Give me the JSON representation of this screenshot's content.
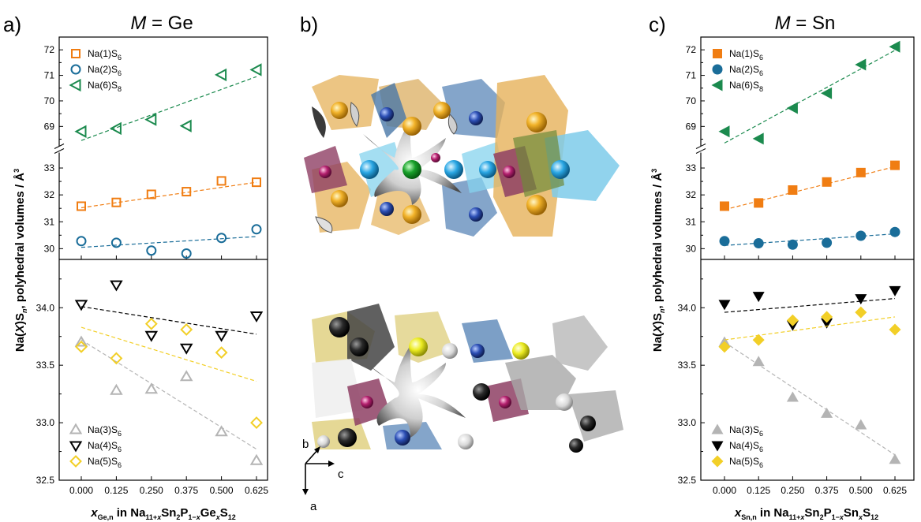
{
  "panels": {
    "a": {
      "letter": "a)",
      "title_italic": "M",
      "title_rest": " = Ge",
      "xlabel": {
        "x": "x",
        "sub": "Ge,n",
        "in": " in Na",
        "s1": "11+",
        "x2": "x",
        "sn": "Sn",
        "s2": "2",
        "p": "P",
        "s3": "1−",
        "x3": "x",
        "el": "Ge",
        "x4": "x",
        "s": "S",
        "s4": "12"
      }
    },
    "b": {
      "letter": "b)",
      "axes": {
        "b": "b",
        "c": "c",
        "a": "a"
      }
    },
    "c": {
      "letter": "c)",
      "title_italic": "M",
      "title_rest": " = Sn",
      "xlabel": {
        "x": "x",
        "sub": "Sn,n",
        "in": " in Na",
        "s1": "11+",
        "x2": "x",
        "sn": "Sn",
        "s2": "2",
        "p": "P",
        "s3": "1−",
        "x3": "x",
        "el": "Sn",
        "x4": "x",
        "s": "S",
        "s4": "12"
      }
    }
  },
  "ylabel": {
    "a": "Na(",
    "b": "X",
    "c2": ")S",
    "d": "n",
    "e": ", polyhedral volumes / Å",
    "f": "3"
  },
  "x_ticks": [
    "0.000",
    "0.125",
    "0.250",
    "0.375",
    "0.500",
    "0.625"
  ],
  "y_ticks": {
    "upper_top": [
      "69",
      "70",
      "71",
      "72"
    ],
    "upper_bottom": [
      "30",
      "31",
      "32",
      "33"
    ],
    "lower": [
      "32.5",
      "33.0",
      "33.5",
      "34.0"
    ]
  },
  "colors": {
    "orange": "#f07d12",
    "blue": "#1a6d99",
    "green": "#1b8a4e",
    "gray": "#b4b4b4",
    "black": "#000000",
    "yellow": "#f2cf27"
  },
  "chart_data": [
    {
      "type": "scatter",
      "panel": "a",
      "title": "M = Ge",
      "xlabel": "x_Ge,n in Na11+xSn2P1−xGexS12",
      "ylabel": "Na(X)Sn, polyhedral volumes / Å3",
      "x": [
        0.0,
        0.125,
        0.25,
        0.375,
        0.5,
        0.625
      ],
      "upper": {
        "ylim_top": [
          68.3,
          72.5
        ],
        "ylim_bottom": [
          29.6,
          33.5
        ],
        "series": [
          {
            "name": "Na(1)S6",
            "base": "Na(1)S",
            "sub": "6",
            "color": "orange",
            "marker": "square-open",
            "break": "bottom",
            "values": [
              31.58,
              31.72,
              32.02,
              32.12,
              32.52,
              32.47
            ],
            "fit": [
              31.52,
              32.47
            ]
          },
          {
            "name": "Na(2)S6",
            "base": "Na(2)S",
            "sub": "6",
            "color": "blue",
            "marker": "circle-open",
            "break": "bottom",
            "values": [
              30.28,
              30.22,
              29.93,
              29.82,
              30.4,
              30.72
            ],
            "fit": [
              30.05,
              30.45
            ]
          },
          {
            "name": "Na(6)S8",
            "base": "Na(6)S",
            "sub": "8",
            "color": "green",
            "marker": "triangle-left-open",
            "break": "top",
            "values": [
              68.8,
              68.92,
              69.27,
              69.02,
              71.02,
              71.22
            ],
            "fit": [
              68.45,
              70.95
            ]
          }
        ]
      },
      "lower": {
        "ylim": [
          32.5,
          34.42
        ],
        "series": [
          {
            "name": "Na(3)S6",
            "base": "Na(3)S",
            "sub": "6",
            "color": "gray",
            "marker": "triangle-up-open",
            "values": [
              33.7,
              33.28,
              33.29,
              33.4,
              32.92,
              32.67
            ],
            "fit": [
              33.72,
              32.77
            ]
          },
          {
            "name": "Na(4)S6",
            "base": "Na(4)S",
            "sub": "6",
            "color": "black",
            "marker": "triangle-down-open",
            "values": [
              34.03,
              34.2,
              33.76,
              33.65,
              33.76,
              33.93
            ],
            "fit": [
              34.01,
              33.77
            ]
          },
          {
            "name": "Na(5)S6",
            "base": "Na(5)S",
            "sub": "6",
            "color": "yellow",
            "marker": "diamond-open",
            "values": [
              33.66,
              33.56,
              33.86,
              33.81,
              33.61,
              33.0
            ],
            "fit": [
              33.83,
              33.36
            ]
          }
        ]
      }
    },
    {
      "type": "scatter",
      "panel": "c",
      "title": "M = Sn",
      "xlabel": "x_Sn,n in Na11+xSn2P1−xSnxS12",
      "ylabel": "",
      "x": [
        0.0,
        0.125,
        0.25,
        0.375,
        0.5,
        0.625
      ],
      "upper": {
        "ylim_top": [
          68.3,
          72.5
        ],
        "ylim_bottom": [
          29.6,
          33.5
        ],
        "series": [
          {
            "name": "Na(1)S6",
            "base": "Na(1)S",
            "sub": "6",
            "color": "orange",
            "marker": "square-filled",
            "break": "bottom",
            "values": [
              31.58,
              31.7,
              32.18,
              32.48,
              32.83,
              33.1
            ],
            "fit": [
              31.45,
              33.05
            ]
          },
          {
            "name": "Na(2)S6",
            "base": "Na(2)S",
            "sub": "6",
            "color": "blue",
            "marker": "circle-filled",
            "break": "bottom",
            "values": [
              30.28,
              30.2,
              30.15,
              30.22,
              30.48,
              30.62
            ],
            "fit": [
              30.12,
              30.55
            ]
          },
          {
            "name": "Na(6)S8",
            "base": "Na(6)S",
            "sub": "8",
            "color": "green",
            "marker": "triangle-left-filled",
            "break": "top",
            "values": [
              68.8,
              68.52,
              69.72,
              70.3,
              71.42,
              72.12
            ],
            "fit": [
              68.35,
              71.98
            ]
          }
        ]
      },
      "lower": {
        "ylim": [
          32.5,
          34.42
        ],
        "series": [
          {
            "name": "Na(3)S6",
            "base": "Na(3)S",
            "sub": "6",
            "color": "gray",
            "marker": "triangle-up-filled",
            "values": [
              33.7,
              33.53,
              33.22,
              33.08,
              32.98,
              32.68
            ],
            "fit": [
              33.7,
              32.72
            ]
          },
          {
            "name": "Na(4)S6",
            "base": "Na(4)S",
            "sub": "6",
            "color": "black",
            "marker": "triangle-down-filled",
            "values": [
              34.03,
              34.1,
              33.85,
              33.87,
              34.08,
              34.15
            ],
            "fit": [
              33.96,
              34.08
            ]
          },
          {
            "name": "Na(5)S6",
            "base": "Na(5)S",
            "sub": "6",
            "color": "yellow",
            "marker": "diamond-filled",
            "values": [
              33.66,
              33.72,
              33.89,
              33.92,
              33.96,
              33.81
            ],
            "fit": [
              33.72,
              33.92
            ]
          }
        ]
      }
    }
  ]
}
